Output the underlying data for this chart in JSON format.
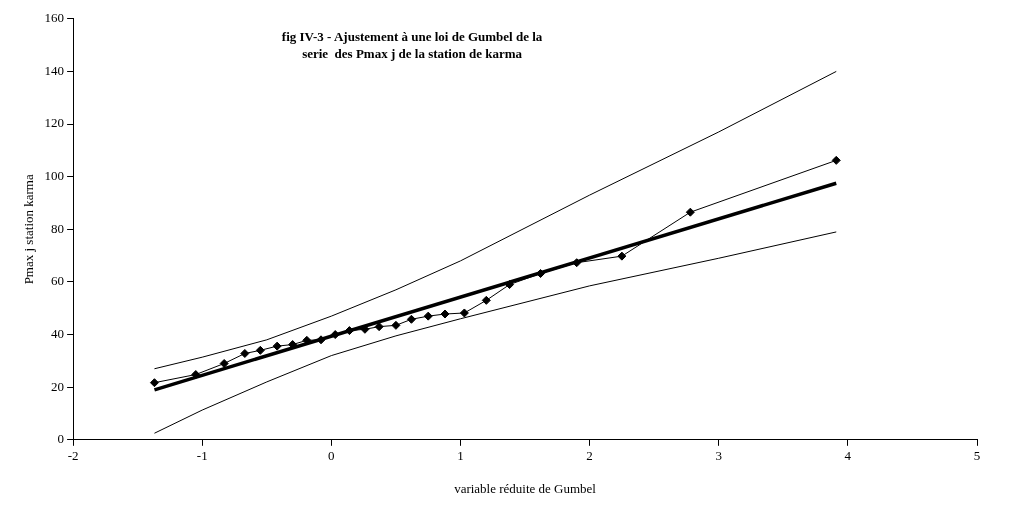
{
  "chart_data": {
    "type": "line",
    "title": "fig IV-3 - Ajustement à une loi de Gumbel de la\nserie  des Pmax j de la station de karma",
    "xlabel": "variable réduite de Gumbel",
    "ylabel": "Pmax j station karma",
    "xlim": [
      -2,
      5
    ],
    "xticks": [
      -2,
      -1,
      0,
      1,
      2,
      3,
      4,
      5
    ],
    "ylim": [
      0,
      160
    ],
    "yticks": [
      0,
      20,
      40,
      60,
      80,
      100,
      120,
      140,
      160
    ],
    "grid": false,
    "legend": false,
    "series": [
      {
        "color": "#000000",
        "marker": "diamond",
        "x": [
          -1.37,
          -1.05,
          -0.83,
          -0.67,
          -0.55,
          -0.42,
          -0.3,
          -0.19,
          -0.08,
          0.03,
          0.14,
          0.26,
          0.37,
          0.5,
          0.62,
          0.75,
          0.88,
          1.03,
          1.2,
          1.38,
          1.62,
          1.9,
          2.25,
          2.78,
          3.91
        ],
        "values": [
          21.7,
          24.8,
          29,
          32.8,
          34,
          35.6,
          36.2,
          37.8,
          38,
          40,
          41.5,
          42,
          43,
          43.5,
          45.8,
          47,
          47.8,
          48.2,
          53,
          59,
          63.2,
          67.3,
          69.8,
          86.5,
          106.2
        ]
      },
      {
        "color": "#000000",
        "marker": "none",
        "x": [
          -1.37,
          3.91
        ],
        "values": [
          19,
          97.5
        ]
      },
      {
        "color": "#000000",
        "marker": "none",
        "x": [
          -1.37,
          -1,
          -0.5,
          0,
          0.5,
          1,
          2,
          3,
          3.91
        ],
        "values": [
          27,
          31.4,
          38,
          47,
          57,
          68,
          93,
          117,
          140
        ]
      },
      {
        "color": "#000000",
        "marker": "none",
        "x": [
          -1.37,
          -1,
          -0.5,
          0,
          0.5,
          1,
          2,
          3,
          3.91
        ],
        "values": [
          2.5,
          11.3,
          22,
          32,
          39.5,
          46,
          58.5,
          69,
          79
        ]
      }
    ]
  }
}
